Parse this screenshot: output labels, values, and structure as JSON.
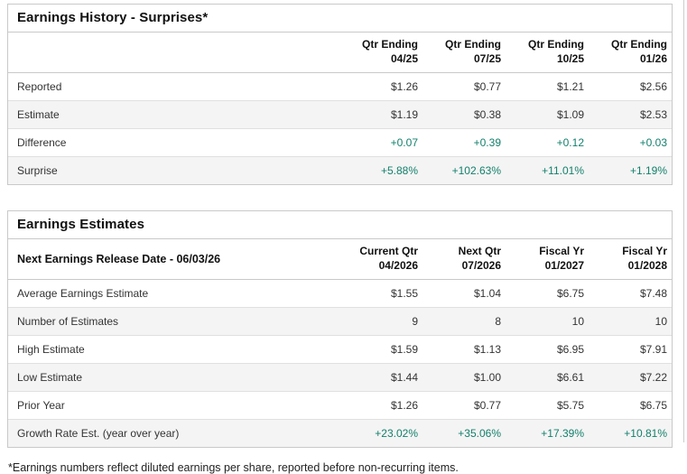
{
  "colors": {
    "positive_value": "#13806c",
    "alt_row_bg": "#f4f4f4",
    "border": "#c9c9c9"
  },
  "earnings_history": {
    "title": "Earnings History - Surprises*",
    "header_label": "",
    "columns": [
      {
        "line1": "Qtr Ending",
        "line2": "04/25"
      },
      {
        "line1": "Qtr Ending",
        "line2": "07/25"
      },
      {
        "line1": "Qtr Ending",
        "line2": "10/25"
      },
      {
        "line1": "Qtr Ending",
        "line2": "01/26"
      }
    ],
    "rows": [
      {
        "label": "Reported",
        "values": [
          "$1.26",
          "$0.77",
          "$1.21",
          "$2.56"
        ],
        "positive": false
      },
      {
        "label": "Estimate",
        "values": [
          "$1.19",
          "$0.38",
          "$1.09",
          "$2.53"
        ],
        "positive": false
      },
      {
        "label": "Difference",
        "values": [
          "+0.07",
          "+0.39",
          "+0.12",
          "+0.03"
        ],
        "positive": true
      },
      {
        "label": "Surprise",
        "values": [
          "+5.88%",
          "+102.63%",
          "+11.01%",
          "+1.19%"
        ],
        "positive": true
      }
    ]
  },
  "earnings_estimates": {
    "title": "Earnings Estimates",
    "header_label": "Next Earnings Release Date - 06/03/26",
    "columns": [
      {
        "line1": "Current Qtr",
        "line2": "04/2026"
      },
      {
        "line1": "Next Qtr",
        "line2": "07/2026"
      },
      {
        "line1": "Fiscal Yr",
        "line2": "01/2027"
      },
      {
        "line1": "Fiscal Yr",
        "line2": "01/2028"
      }
    ],
    "rows": [
      {
        "label": "Average Earnings Estimate",
        "values": [
          "$1.55",
          "$1.04",
          "$6.75",
          "$7.48"
        ],
        "positive": false
      },
      {
        "label": "Number of Estimates",
        "values": [
          "9",
          "8",
          "10",
          "10"
        ],
        "positive": false
      },
      {
        "label": "High Estimate",
        "values": [
          "$1.59",
          "$1.13",
          "$6.95",
          "$7.91"
        ],
        "positive": false
      },
      {
        "label": "Low Estimate",
        "values": [
          "$1.44",
          "$1.00",
          "$6.61",
          "$7.22"
        ],
        "positive": false
      },
      {
        "label": "Prior Year",
        "values": [
          "$1.26",
          "$0.77",
          "$5.75",
          "$6.75"
        ],
        "positive": false
      },
      {
        "label": "Growth Rate Est. (year over year)",
        "values": [
          "+23.02%",
          "+35.06%",
          "+17.39%",
          "+10.81%"
        ],
        "positive": true
      }
    ]
  },
  "footnote": "*Earnings numbers reflect diluted earnings per share, reported before non-recurring items."
}
